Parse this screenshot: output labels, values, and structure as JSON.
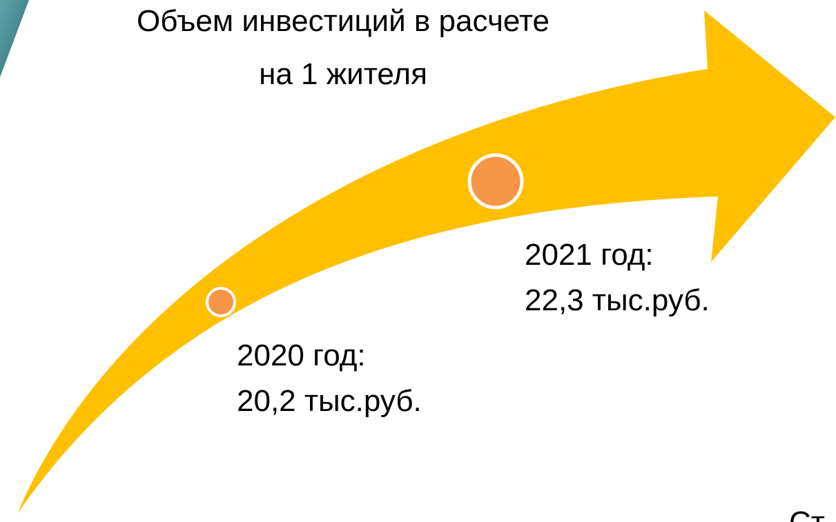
{
  "title": [
    "Объем инвестиций в расчете",
    "на 1 жителя"
  ],
  "points": [
    {
      "year": "2020 год:",
      "value": "20,2 тыс.руб."
    },
    {
      "year": "2021 год:",
      "value": "22,3 тыс.руб."
    }
  ],
  "footer": "Ст"
}
